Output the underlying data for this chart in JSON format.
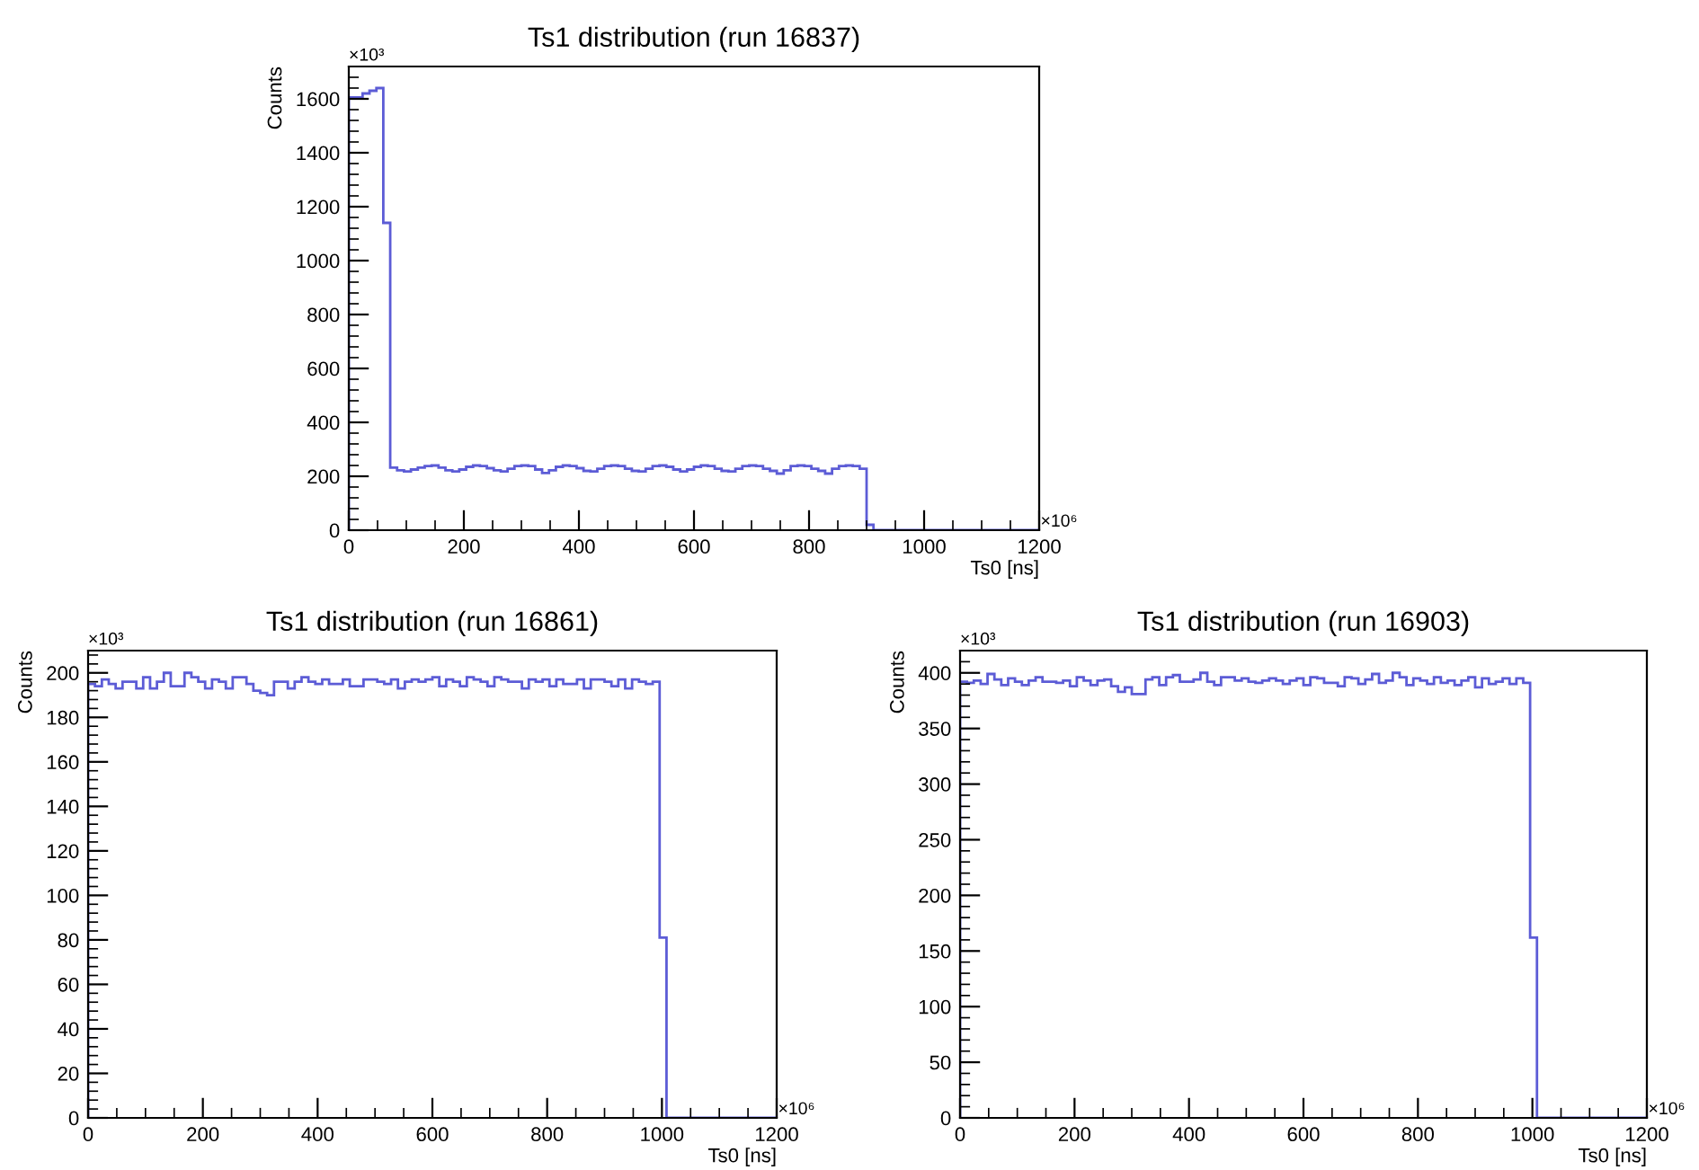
{
  "chart_data": [
    {
      "type": "histogram",
      "title": "Ts1 distribution (run 16837)",
      "xlabel": "Ts0 [ns]",
      "ylabel": "Counts",
      "annotations": [
        "×10³",
        "×10⁶"
      ],
      "color": "#5c5cd6",
      "bins": [
        0,
        12,
        24,
        36,
        48,
        60,
        72,
        84,
        96,
        108,
        120,
        132,
        144,
        156,
        168,
        180,
        192,
        204,
        216,
        228,
        240,
        252,
        264,
        276,
        288,
        300,
        312,
        324,
        336,
        348,
        360,
        372,
        384,
        396,
        408,
        420,
        432,
        444,
        456,
        468,
        480,
        492,
        504,
        516,
        528,
        540,
        552,
        564,
        576,
        588,
        600,
        612,
        624,
        636,
        648,
        660,
        672,
        684,
        696,
        708,
        720,
        732,
        744,
        756,
        768,
        780,
        792,
        804,
        816,
        828,
        840,
        852,
        864,
        876,
        888,
        900,
        912,
        924,
        936,
        948,
        960,
        972,
        984,
        996,
        1008,
        1020,
        1032,
        1044,
        1056,
        1068,
        1080,
        1092,
        1104,
        1116,
        1128,
        1140,
        1152,
        1164,
        1176,
        1188,
        1200
      ],
      "values": [
        1605,
        1605,
        1620,
        1630,
        1640,
        1140,
        232,
        222,
        218,
        225,
        232,
        238,
        240,
        232,
        222,
        218,
        225,
        235,
        240,
        238,
        230,
        222,
        218,
        228,
        238,
        240,
        238,
        225,
        212,
        222,
        235,
        240,
        238,
        230,
        220,
        218,
        228,
        238,
        240,
        238,
        228,
        220,
        218,
        228,
        238,
        240,
        235,
        225,
        218,
        225,
        235,
        240,
        238,
        228,
        220,
        218,
        228,
        238,
        240,
        238,
        228,
        220,
        210,
        222,
        238,
        240,
        238,
        228,
        220,
        210,
        228,
        238,
        240,
        238,
        228,
        20,
        0,
        0,
        0,
        0,
        0,
        0,
        0,
        0,
        0,
        0,
        0,
        0,
        0,
        0,
        0,
        0,
        0,
        0,
        0,
        0,
        0,
        0,
        0,
        0
      ],
      "xlim": [
        0,
        1200
      ],
      "xticks": [
        0,
        200,
        400,
        600,
        800,
        1000,
        1200
      ],
      "ylim": [
        0,
        1720
      ],
      "yticks": [
        0,
        200,
        400,
        600,
        800,
        1000,
        1200,
        1400,
        1600
      ]
    },
    {
      "type": "histogram",
      "title": "Ts1 distribution (run 16861)",
      "xlabel": "Ts0 [ns]",
      "ylabel": "Counts",
      "annotations": [
        "×10³",
        "×10⁶"
      ],
      "color": "#5c5cd6",
      "bins": [
        0,
        12,
        24,
        36,
        48,
        60,
        72,
        84,
        96,
        108,
        120,
        132,
        144,
        156,
        168,
        180,
        192,
        204,
        216,
        228,
        240,
        252,
        264,
        276,
        288,
        300,
        312,
        324,
        336,
        348,
        360,
        372,
        384,
        396,
        408,
        420,
        432,
        444,
        456,
        468,
        480,
        492,
        504,
        516,
        528,
        540,
        552,
        564,
        576,
        588,
        600,
        612,
        624,
        636,
        648,
        660,
        672,
        684,
        696,
        708,
        720,
        732,
        744,
        756,
        768,
        780,
        792,
        804,
        816,
        828,
        840,
        852,
        864,
        876,
        888,
        900,
        912,
        924,
        936,
        948,
        960,
        972,
        984,
        996,
        1008,
        1020,
        1032,
        1044,
        1056,
        1068,
        1080,
        1092,
        1104,
        1116,
        1128,
        1140,
        1152,
        1164,
        1176,
        1188,
        1200
      ],
      "values": [
        195,
        194,
        197,
        195,
        193,
        196,
        196,
        193,
        198,
        193,
        196,
        200,
        194,
        194,
        200,
        198,
        196,
        193,
        197,
        196,
        193,
        198,
        198,
        195,
        192,
        191,
        190,
        196,
        196,
        193,
        196,
        198,
        196,
        195,
        197,
        195,
        195,
        197,
        194,
        194,
        197,
        197,
        196,
        195,
        197,
        193,
        196,
        197,
        196,
        197,
        198,
        194,
        197,
        196,
        194,
        198,
        197,
        196,
        194,
        198,
        197,
        196,
        196,
        193,
        197,
        196,
        197,
        194,
        197,
        195,
        195,
        197,
        193,
        197,
        197,
        196,
        194,
        197,
        193,
        197,
        196,
        195,
        196,
        81,
        0,
        0,
        0,
        0,
        0,
        0,
        0,
        0,
        0,
        0,
        0,
        0,
        0,
        0,
        0,
        0
      ],
      "xlim": [
        0,
        1200
      ],
      "xticks": [
        0,
        200,
        400,
        600,
        800,
        1000,
        1200
      ],
      "ylim": [
        0,
        210
      ],
      "yticks": [
        0,
        20,
        40,
        60,
        80,
        100,
        120,
        140,
        160,
        180,
        200
      ]
    },
    {
      "type": "histogram",
      "title": "Ts1 distribution (run 16903)",
      "xlabel": "Ts0 [ns]",
      "ylabel": "Counts",
      "annotations": [
        "×10³",
        "×10⁶"
      ],
      "color": "#5c5cd6",
      "bins": [
        0,
        12,
        24,
        36,
        48,
        60,
        72,
        84,
        96,
        108,
        120,
        132,
        144,
        156,
        168,
        180,
        192,
        204,
        216,
        228,
        240,
        252,
        264,
        276,
        288,
        300,
        312,
        324,
        336,
        348,
        360,
        372,
        384,
        396,
        408,
        420,
        432,
        444,
        456,
        468,
        480,
        492,
        504,
        516,
        528,
        540,
        552,
        564,
        576,
        588,
        600,
        612,
        624,
        636,
        648,
        660,
        672,
        684,
        696,
        708,
        720,
        732,
        744,
        756,
        768,
        780,
        792,
        804,
        816,
        828,
        840,
        852,
        864,
        876,
        888,
        900,
        912,
        924,
        936,
        948,
        960,
        972,
        984,
        996,
        1008,
        1020,
        1032,
        1044,
        1056,
        1068,
        1080,
        1092,
        1104,
        1116,
        1128,
        1140,
        1152,
        1164,
        1176,
        1188,
        1200
      ],
      "values": [
        392,
        391,
        393,
        390,
        399,
        394,
        389,
        395,
        392,
        389,
        393,
        396,
        392,
        392,
        391,
        393,
        388,
        396,
        393,
        389,
        393,
        394,
        388,
        383,
        387,
        381,
        381,
        394,
        396,
        389,
        396,
        398,
        392,
        392,
        394,
        400,
        392,
        389,
        396,
        396,
        393,
        395,
        392,
        391,
        393,
        395,
        393,
        390,
        393,
        395,
        389,
        396,
        395,
        391,
        391,
        388,
        396,
        395,
        390,
        394,
        399,
        391,
        393,
        400,
        396,
        389,
        395,
        393,
        390,
        396,
        391,
        393,
        389,
        393,
        396,
        387,
        395,
        390,
        392,
        395,
        390,
        395,
        391,
        162,
        0,
        0,
        0,
        0,
        0,
        0,
        0,
        0,
        0,
        0,
        0,
        0,
        0,
        0,
        0,
        0
      ],
      "xlim": [
        0,
        1200
      ],
      "xticks": [
        0,
        200,
        400,
        600,
        800,
        1000,
        1200
      ],
      "ylim": [
        0,
        420
      ],
      "yticks": [
        0,
        50,
        100,
        150,
        200,
        250,
        300,
        350,
        400
      ]
    }
  ]
}
